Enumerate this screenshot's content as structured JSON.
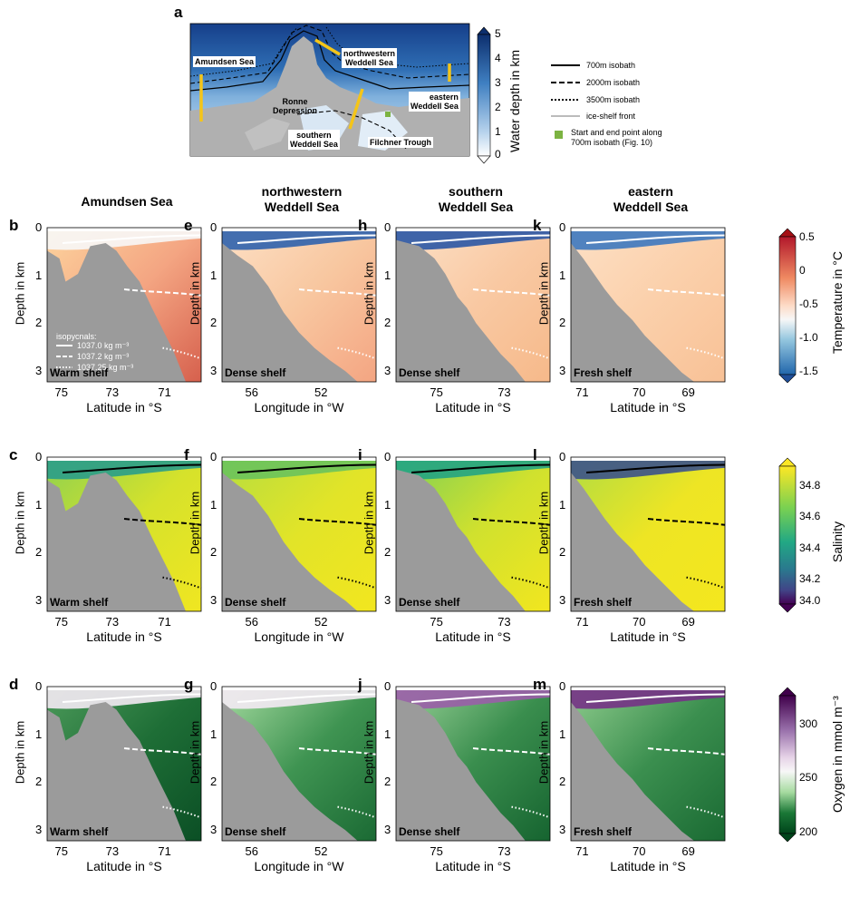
{
  "map": {
    "letter": "a",
    "labels": {
      "amundsen": "Amundsen Sea",
      "nw_weddell": "northwestern\nWeddell Sea",
      "ronne": "Ronne\nDepression",
      "s_weddell": "southern\nWeddell Sea",
      "filchner": "Filchner Trough",
      "e_weddell": "eastern\nWeddell Sea"
    },
    "colorbar": {
      "label": "Water depth in km",
      "ticks": [
        "5",
        "4",
        "3",
        "2",
        "1",
        "0"
      ]
    },
    "legend": {
      "isobath700": "700m isobath",
      "isobath2000": "2000m isobath",
      "isobath3500": "3500m isobath",
      "iceshelf": "ice-shelf front",
      "startend": "Start and end point along\n700m isobath (Fig. 10)"
    },
    "colors": {
      "deep": "#1c4f9c",
      "shallow": "#c9dcf0",
      "land": "#b4b4b4",
      "section": "#f5c518",
      "startend": "#7cb342"
    }
  },
  "columns": [
    {
      "title": "Amundsen Sea",
      "xlabel": "Latitude in °S",
      "xticks": [
        "75",
        "73",
        "71"
      ],
      "shelf": "Warm shelf"
    },
    {
      "title": "northwestern\nWeddell Sea",
      "xlabel": "Longitude in °W",
      "xticks": [
        "56",
        "52"
      ],
      "shelf": "Dense shelf"
    },
    {
      "title": "southern\nWeddell Sea",
      "xlabel": "Latitude in °S",
      "xticks": [
        "75",
        "73"
      ],
      "shelf": "Dense shelf"
    },
    {
      "title": "eastern\nWeddell Sea",
      "xlabel": "Latitude in °S",
      "xticks": [
        "71",
        "70",
        "69"
      ],
      "shelf": "Fresh shelf"
    }
  ],
  "rows": [
    {
      "letters": [
        "b",
        "e",
        "h",
        "k"
      ],
      "variable": "temperature"
    },
    {
      "letters": [
        "c",
        "f",
        "i",
        "l"
      ],
      "variable": "salinity"
    },
    {
      "letters": [
        "d",
        "g",
        "j",
        "m"
      ],
      "variable": "oxygen"
    }
  ],
  "ylabel": "Depth in km",
  "yticks": [
    "0",
    "1",
    "2",
    "3"
  ],
  "isopycnals": {
    "title": "isopycnals:",
    "items": [
      "1037.0 kg m⁻³",
      "1037.2 kg m⁻³",
      "1037.25 kg m⁻³"
    ]
  },
  "colorbars": {
    "temperature": {
      "label": "Temperature in °C",
      "ticks": [
        "0.5",
        "0",
        "-0.5",
        "-1.0",
        "-1.5"
      ]
    },
    "salinity": {
      "label": "Salinity",
      "ticks": [
        "34.8",
        "34.6",
        "34.4",
        "34.2",
        "34.0"
      ]
    },
    "oxygen": {
      "label": "Oxygen in mmol m⁻³",
      "ticks": [
        "300",
        "250",
        "200"
      ]
    }
  }
}
